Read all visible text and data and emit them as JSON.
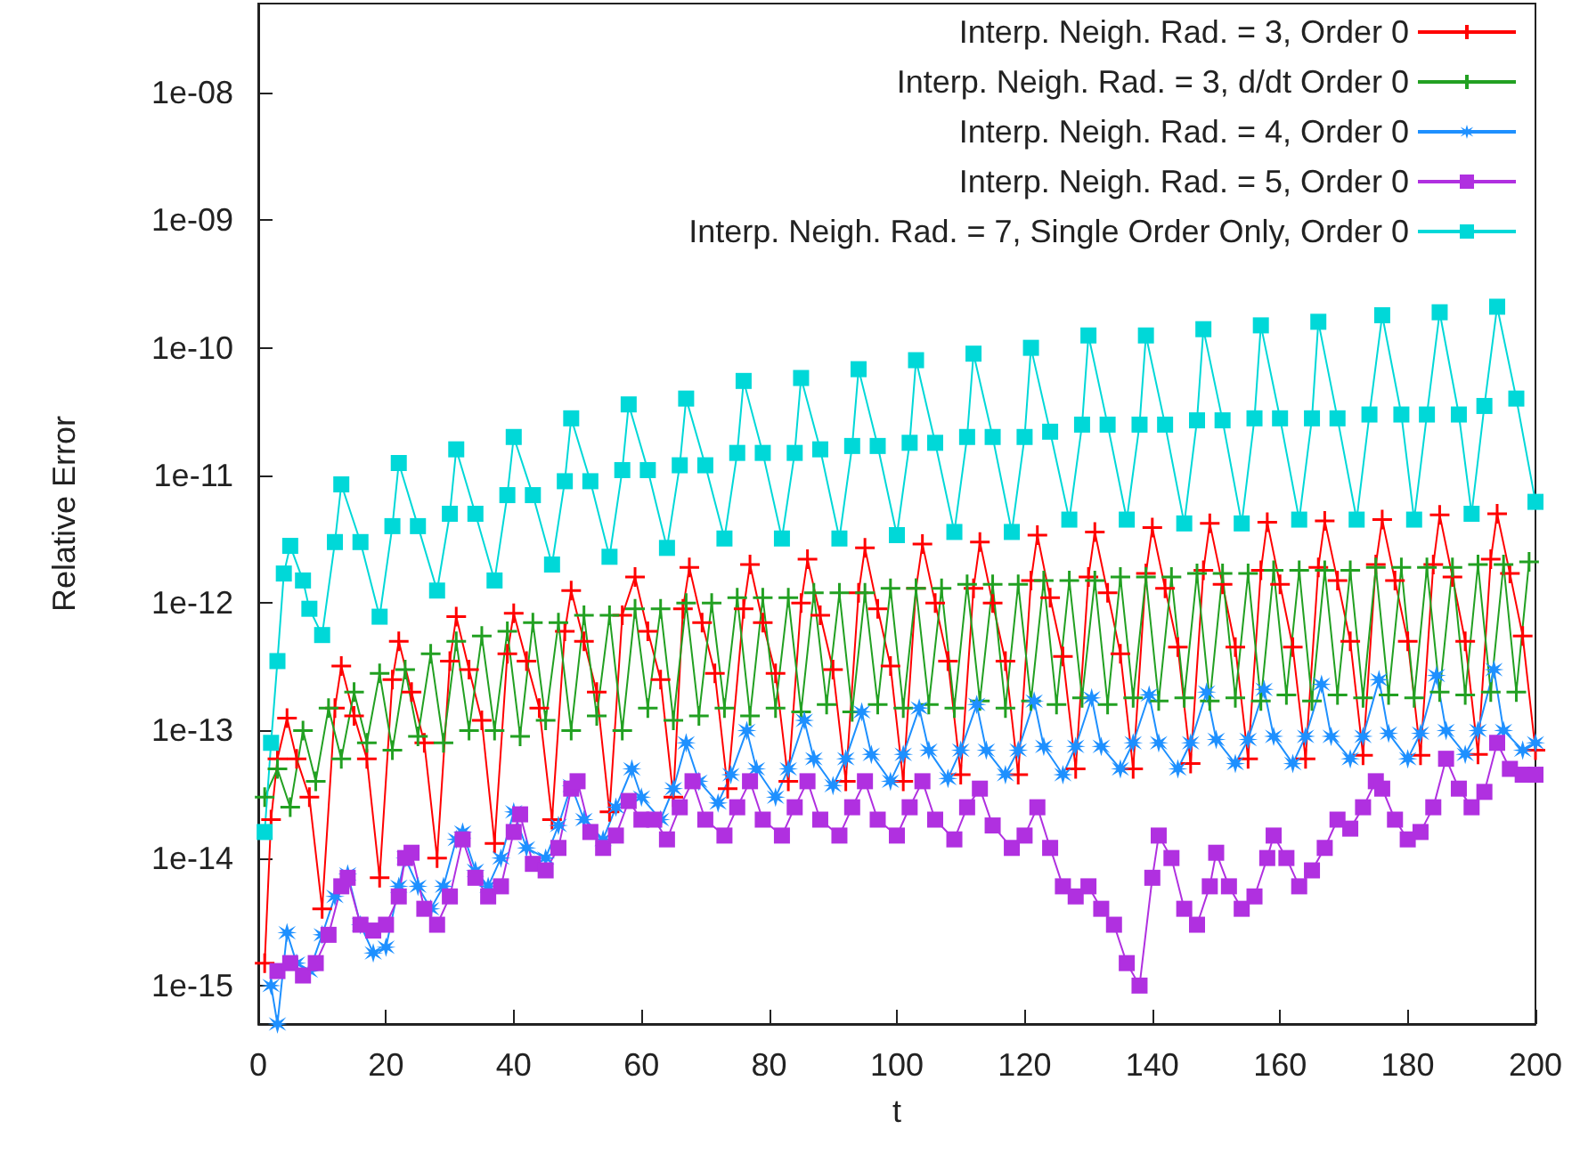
{
  "chart_data": {
    "type": "line",
    "xlabel": "t",
    "ylabel": "Relative Error",
    "log": "y",
    "legend": "top right",
    "grid": false,
    "line_style": "solid",
    "xlim": [
      0,
      200
    ],
    "xticks": [
      0,
      20,
      40,
      60,
      80,
      100,
      120,
      140,
      160,
      180,
      200
    ],
    "ylim": [
      5e-16,
      5e-08
    ],
    "yticks": [
      {
        "value": 1e-15,
        "label": "1e-15"
      },
      {
        "value": 1e-14,
        "label": "1e-14"
      },
      {
        "value": 1e-13,
        "label": "1e-13"
      },
      {
        "value": 1e-12,
        "label": "1e-12"
      },
      {
        "value": 1e-11,
        "label": "1e-11"
      },
      {
        "value": 1e-10,
        "label": "1e-10"
      },
      {
        "value": 1e-09,
        "label": "1e-09"
      },
      {
        "value": 1e-08,
        "label": "1e-08"
      }
    ],
    "series": [
      {
        "name": "Interp. Neigh. Rad. = 3, Order 0",
        "color": "#ff0000",
        "marker": "cross",
        "x": [
          1,
          2,
          3,
          4.5,
          6,
          8,
          10,
          12,
          13,
          15,
          17,
          19,
          21,
          22,
          24,
          26,
          28,
          30,
          31,
          33,
          35,
          37,
          39,
          40,
          42,
          44,
          46,
          48,
          49,
          51,
          53,
          55,
          57,
          59,
          61,
          63,
          65,
          66.5,
          67.5,
          69.5,
          71.5,
          73.5,
          76,
          77,
          79,
          81,
          83,
          85,
          86,
          88,
          90,
          92,
          94,
          95,
          97,
          99,
          101,
          103,
          104,
          106,
          108,
          110,
          112,
          113,
          115,
          117,
          119,
          121,
          122,
          124,
          126,
          128,
          130,
          131,
          133,
          135,
          137,
          139,
          140,
          142,
          144,
          146,
          148,
          149,
          151,
          153,
          155,
          157,
          158,
          160,
          162,
          164,
          166,
          167,
          169,
          171,
          173,
          175,
          176,
          178,
          180,
          182,
          184,
          185,
          187,
          189,
          191,
          193,
          194,
          196,
          198,
          200
        ],
        "values": [
          1.5e-15,
          2e-14,
          6e-14,
          1.25e-13,
          6e-14,
          3e-14,
          4e-15,
          1.5e-13,
          3.2e-13,
          1.3e-13,
          6e-14,
          7e-15,
          2.5e-13,
          5e-13,
          2e-13,
          8e-14,
          1e-14,
          3.5e-13,
          7.8e-13,
          3e-13,
          1.2e-13,
          1.3e-14,
          4e-13,
          8.3e-13,
          3.5e-13,
          1.5e-13,
          2e-14,
          6e-13,
          1.25e-12,
          5e-13,
          2e-13,
          2.3e-14,
          8e-13,
          1.6e-12,
          6e-13,
          2.5e-13,
          3e-14,
          9e-13,
          1.9e-12,
          7e-13,
          2.8e-13,
          3.5e-14,
          9e-13,
          2e-12,
          7e-13,
          2.8e-13,
          4e-14,
          1e-12,
          2.2e-12,
          8e-13,
          3e-13,
          4e-14,
          1.2e-12,
          2.7e-12,
          9e-13,
          3.2e-13,
          4e-14,
          1.3e-12,
          2.9e-12,
          1e-12,
          3.5e-13,
          4.5e-14,
          1.3e-12,
          3e-12,
          1e-12,
          3.5e-13,
          4.5e-14,
          1.5e-12,
          3.4e-12,
          1.1e-12,
          3.8e-13,
          5e-14,
          1.6e-12,
          3.6e-12,
          1.2e-12,
          4e-13,
          5e-14,
          1.7e-12,
          3.9e-12,
          1.3e-12,
          4.5e-13,
          5.5e-14,
          1.8e-12,
          4.2e-12,
          1.4e-12,
          4.5e-13,
          6e-14,
          1.8e-12,
          4.3e-12,
          1.4e-12,
          4.5e-13,
          6e-14,
          1.9e-12,
          4.4e-12,
          1.5e-12,
          5e-13,
          6.4e-14,
          2e-12,
          4.5e-12,
          1.5e-12,
          5e-13,
          6.4e-14,
          2e-12,
          4.9e-12,
          1.6e-12,
          5e-13,
          6.5e-14,
          2.2e-12,
          5e-12,
          1.7e-12,
          5.5e-13,
          7e-14
        ]
      },
      {
        "name": "Interp. Neigh. Rad. = 3, d/dt Order 0",
        "color": "#22a022",
        "marker": "cross",
        "x": [
          1,
          3,
          5,
          7,
          9,
          11,
          13,
          15,
          17,
          19,
          21,
          23,
          25,
          27,
          29,
          31,
          33,
          35,
          37,
          39,
          41,
          43,
          45,
          47,
          49,
          51,
          53,
          55,
          57,
          59,
          61,
          63,
          65,
          67,
          69,
          71,
          73,
          75,
          77,
          79,
          81,
          83,
          85,
          87,
          89,
          91,
          93,
          95,
          97,
          99,
          101,
          103,
          105,
          107,
          109,
          111,
          113,
          115,
          117,
          119,
          121,
          123,
          125,
          127,
          129,
          131,
          133,
          135,
          137,
          139,
          141,
          143,
          145,
          147,
          149,
          151,
          153,
          155,
          157,
          159,
          161,
          163,
          165,
          167,
          169,
          171,
          173,
          175,
          177,
          179,
          181,
          183,
          185,
          187,
          189,
          191,
          193,
          195,
          197,
          199
        ],
        "values": [
          3e-14,
          5e-14,
          2.5e-14,
          1e-13,
          4e-14,
          1.5e-13,
          6e-14,
          2e-13,
          8e-14,
          2.8e-13,
          7e-14,
          3e-13,
          9e-14,
          4e-13,
          8e-14,
          5e-13,
          1e-13,
          5.5e-13,
          1e-13,
          6e-13,
          9e-14,
          7e-13,
          1.2e-13,
          7e-13,
          1e-13,
          8e-13,
          1.3e-13,
          8e-13,
          1e-13,
          9e-13,
          1.5e-13,
          9e-13,
          1.2e-13,
          1e-12,
          1.3e-13,
          1e-12,
          1.5e-13,
          1.1e-12,
          1.3e-13,
          1.1e-12,
          1.5e-13,
          1.1e-12,
          1.4e-13,
          1.2e-12,
          1.6e-13,
          1.2e-12,
          1.4e-13,
          1.2e-12,
          1.6e-13,
          1.3e-12,
          1.5e-13,
          1.3e-12,
          1.6e-13,
          1.3e-12,
          1.5e-13,
          1.4e-12,
          1.7e-13,
          1.4e-12,
          1.5e-13,
          1.4e-12,
          1.7e-13,
          1.5e-12,
          1.6e-13,
          1.5e-12,
          1.8e-13,
          1.5e-12,
          1.6e-13,
          1.6e-12,
          1.8e-13,
          1.6e-12,
          1.7e-13,
          1.6e-12,
          1.8e-13,
          1.7e-12,
          1.7e-13,
          1.7e-12,
          1.8e-13,
          1.7e-12,
          1.7e-13,
          1.8e-12,
          1.9e-13,
          1.8e-12,
          1.7e-13,
          1.8e-12,
          1.9e-13,
          1.8e-12,
          1.8e-13,
          1.9e-12,
          1.9e-13,
          1.9e-12,
          1.8e-13,
          1.9e-12,
          2e-13,
          1.9e-12,
          1.9e-13,
          2e-12,
          2e-13,
          2e-12,
          2e-13,
          2.1e-12
        ]
      },
      {
        "name": "Interp. Neigh. Rad. = 4, Order 0",
        "color": "#1e90ff",
        "marker": "star",
        "x": [
          2,
          3,
          4.5,
          6,
          8,
          10,
          12,
          14,
          16,
          18,
          20,
          22,
          23,
          25,
          27,
          29,
          31,
          32,
          34,
          36,
          38,
          40,
          42,
          45,
          47,
          49,
          51,
          54,
          56,
          58.5,
          60,
          63,
          65,
          67,
          69,
          72,
          74,
          76.5,
          78,
          81,
          83,
          85.5,
          87,
          90,
          92,
          94.5,
          96,
          99,
          101,
          103.5,
          105,
          108,
          110,
          112.5,
          114,
          117,
          119,
          121.5,
          123,
          126,
          128,
          130.5,
          132,
          135,
          137,
          139.5,
          141,
          144,
          146,
          148.5,
          150,
          153,
          155,
          157.5,
          159,
          162,
          164,
          166.5,
          168,
          171,
          173,
          175.5,
          177,
          180,
          182,
          184.5,
          186,
          189,
          191,
          193.5,
          195,
          198,
          200
        ],
        "values": [
          1e-15,
          5e-16,
          2.6e-15,
          1.5e-15,
          1.3e-15,
          2.5e-15,
          5e-15,
          7.5e-15,
          3e-15,
          1.8e-15,
          2e-15,
          6e-15,
          1e-14,
          6e-15,
          4e-15,
          6e-15,
          1.4e-14,
          1.6e-14,
          8e-15,
          6e-15,
          1e-14,
          2.3e-14,
          1.2e-14,
          1e-14,
          1.8e-14,
          3.7e-14,
          2e-14,
          1.4e-14,
          2.5e-14,
          5e-14,
          3e-14,
          2e-14,
          3.5e-14,
          8e-14,
          4e-14,
          2.7e-14,
          4.5e-14,
          1e-13,
          5e-14,
          3e-14,
          5e-14,
          1.2e-13,
          6e-14,
          3.7e-14,
          6e-14,
          1.4e-13,
          6.5e-14,
          4e-14,
          6.5e-14,
          1.5e-13,
          7e-14,
          4.2e-14,
          7e-14,
          1.6e-13,
          7e-14,
          4.5e-14,
          7e-14,
          1.7e-13,
          7.5e-14,
          4.5e-14,
          7.5e-14,
          1.8e-13,
          7.5e-14,
          5e-14,
          8e-14,
          1.9e-13,
          8e-14,
          5e-14,
          8e-14,
          2e-13,
          8.5e-14,
          5.5e-14,
          8.5e-14,
          2.1e-13,
          9e-14,
          5.5e-14,
          9e-14,
          2.3e-13,
          9e-14,
          6e-14,
          9e-14,
          2.5e-13,
          9.5e-14,
          6e-14,
          9.5e-14,
          2.7e-13,
          1e-13,
          6.5e-14,
          1e-13,
          3e-13,
          1e-13,
          7e-14,
          8e-14
        ]
      },
      {
        "name": "Interp. Neigh. Rad. = 5, Order 0",
        "color": "#b030e0",
        "marker": "square",
        "x": [
          3,
          5,
          7,
          9,
          11,
          13,
          14,
          16,
          18,
          20,
          22,
          23,
          24,
          26,
          28,
          30,
          32,
          34,
          36,
          38,
          40,
          41,
          43,
          45,
          47,
          49,
          50,
          52,
          54,
          56,
          58,
          60,
          62,
          64,
          66,
          68,
          70,
          73,
          75,
          77,
          79,
          82,
          84,
          86,
          88,
          91,
          93,
          95,
          97,
          100,
          102,
          104,
          106,
          109,
          111,
          113,
          115,
          118,
          120,
          122,
          124,
          126,
          128,
          130,
          132,
          134,
          136,
          138,
          140,
          141,
          143,
          145,
          147,
          149,
          150,
          152,
          154,
          156,
          158,
          159,
          161,
          163,
          165,
          167,
          169,
          171,
          173,
          175,
          176,
          178,
          180,
          182,
          184,
          186,
          188,
          190,
          192,
          194,
          196,
          198,
          200
        ],
        "values": [
          1.3e-15,
          1.5e-15,
          1.2e-15,
          1.5e-15,
          2.5e-15,
          6e-15,
          7e-15,
          3e-15,
          2.7e-15,
          3e-15,
          5e-15,
          1e-14,
          1.1e-14,
          4e-15,
          3e-15,
          5e-15,
          1.4e-14,
          7e-15,
          5e-15,
          6e-15,
          1.6e-14,
          2.2e-14,
          9e-15,
          8e-15,
          1.2e-14,
          3.5e-14,
          4e-14,
          1.6e-14,
          1.2e-14,
          1.5e-14,
          2.8e-14,
          2e-14,
          2e-14,
          1.4e-14,
          2.5e-14,
          4e-14,
          2e-14,
          1.5e-14,
          2.5e-14,
          4e-14,
          2e-14,
          1.5e-14,
          2.5e-14,
          4e-14,
          2e-14,
          1.5e-14,
          2.5e-14,
          4e-14,
          2e-14,
          1.5e-14,
          2.5e-14,
          4e-14,
          2e-14,
          1.4e-14,
          2.5e-14,
          3.5e-14,
          1.8e-14,
          1.2e-14,
          1.5e-14,
          2.5e-14,
          1.2e-14,
          6e-15,
          5e-15,
          6e-15,
          4e-15,
          3e-15,
          1.5e-15,
          1e-15,
          7e-15,
          1.5e-14,
          1e-14,
          4e-15,
          3e-15,
          6e-15,
          1.1e-14,
          6e-15,
          4e-15,
          5e-15,
          1e-14,
          1.5e-14,
          1e-14,
          6e-15,
          8e-15,
          1.2e-14,
          2e-14,
          1.7e-14,
          2.5e-14,
          4e-14,
          3.5e-14,
          2e-14,
          1.4e-14,
          1.6e-14,
          2.5e-14,
          6e-14,
          3.5e-14,
          2.5e-14,
          3.3e-14,
          8e-14,
          5e-14,
          4.5e-14,
          4.5e-14
        ]
      },
      {
        "name": "Interp. Neigh. Rad. = 7, Single Order Only, Order 0",
        "color": "#00d8d8",
        "marker": "square",
        "x": [
          1,
          2,
          3,
          4,
          5,
          7,
          8,
          10,
          12,
          13,
          16,
          19,
          21,
          22,
          25,
          28,
          30,
          31,
          34,
          37,
          39,
          40,
          43,
          46,
          48,
          49,
          52,
          55,
          57,
          58,
          61,
          64,
          66,
          67,
          70,
          73,
          75,
          76,
          79,
          82,
          84,
          85,
          88,
          91,
          93,
          94,
          97,
          100,
          102,
          103,
          106,
          109,
          111,
          112,
          115,
          118,
          120,
          121,
          124,
          127,
          129,
          130,
          133,
          136,
          138,
          139,
          142,
          145,
          147,
          148,
          151,
          154,
          156,
          157,
          160,
          163,
          165,
          166,
          169,
          172,
          174,
          176,
          179,
          181,
          183,
          185,
          188,
          190,
          192,
          194,
          197,
          200
        ],
        "values": [
          1.6e-14,
          8e-14,
          3.5e-13,
          1.7e-12,
          2.8e-12,
          1.5e-12,
          9e-13,
          5.6e-13,
          3e-12,
          8.5e-12,
          3e-12,
          7.8e-13,
          4e-12,
          1.25e-11,
          4e-12,
          1.25e-12,
          5e-12,
          1.6e-11,
          5e-12,
          1.5e-12,
          7e-12,
          2e-11,
          7e-12,
          2e-12,
          9e-12,
          2.8e-11,
          9e-12,
          2.3e-12,
          1.1e-11,
          3.6e-11,
          1.1e-11,
          2.7e-12,
          1.2e-11,
          4e-11,
          1.2e-11,
          3.2e-12,
          1.5e-11,
          5.5e-11,
          1.5e-11,
          3.2e-12,
          1.5e-11,
          5.8e-11,
          1.6e-11,
          3.2e-12,
          1.7e-11,
          6.8e-11,
          1.7e-11,
          3.4e-12,
          1.8e-11,
          8e-11,
          1.8e-11,
          3.6e-12,
          2e-11,
          9e-11,
          2e-11,
          3.6e-12,
          2e-11,
          1e-10,
          2.2e-11,
          4.5e-12,
          2.5e-11,
          1.25e-10,
          2.5e-11,
          4.5e-12,
          2.5e-11,
          1.25e-10,
          2.5e-11,
          4.2e-12,
          2.7e-11,
          1.4e-10,
          2.7e-11,
          4.2e-12,
          2.8e-11,
          1.5e-10,
          2.8e-11,
          4.5e-12,
          2.8e-11,
          1.6e-10,
          2.8e-11,
          4.5e-12,
          3e-11,
          1.8e-10,
          3e-11,
          4.5e-12,
          3e-11,
          1.9e-10,
          3e-11,
          5e-12,
          3.5e-11,
          2.1e-10,
          4e-11,
          6.2e-12
        ]
      }
    ]
  }
}
